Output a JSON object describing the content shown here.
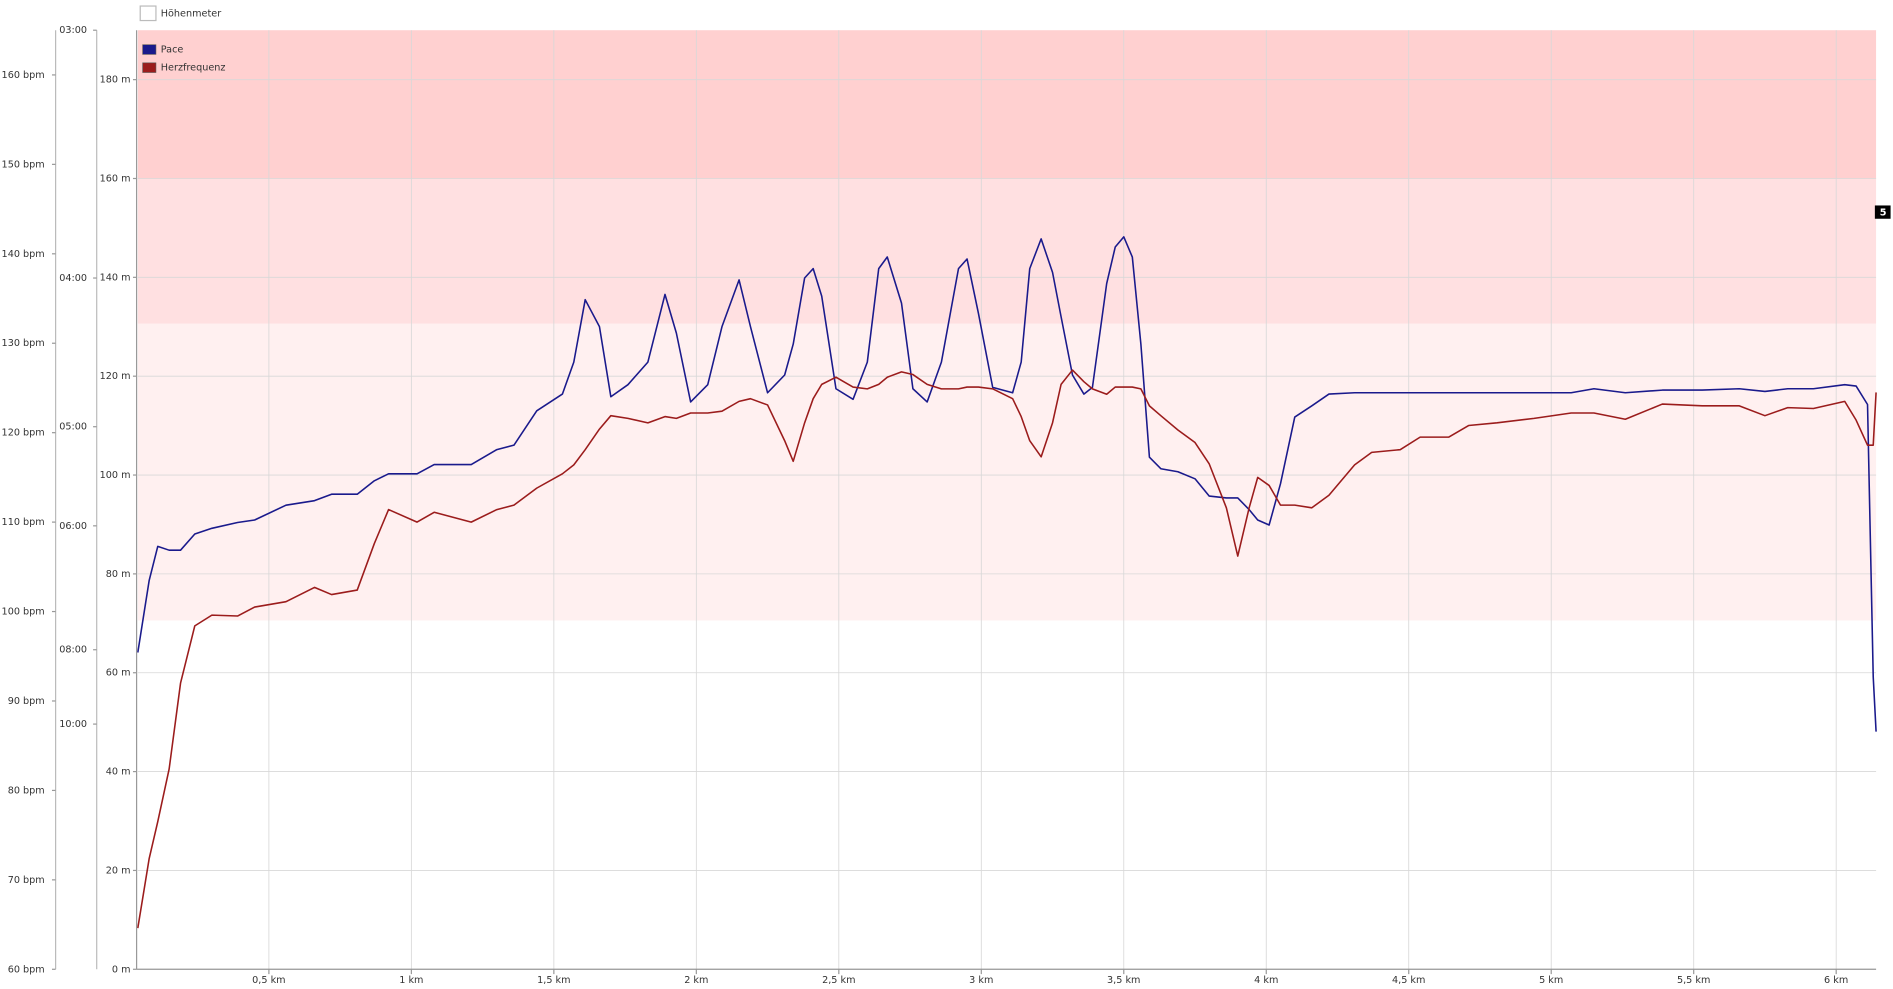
{
  "chart_data": {
    "type": "line",
    "top_legend": "Höhenmeter",
    "annotation": "5",
    "x": [
      0.04,
      0.08,
      0.11,
      0.15,
      0.19,
      0.24,
      0.3,
      0.39,
      0.45,
      0.56,
      0.66,
      0.72,
      0.81,
      0.87,
      0.92,
      1.02,
      1.08,
      1.21,
      1.3,
      1.36,
      1.44,
      1.53,
      1.57,
      1.61,
      1.66,
      1.7,
      1.76,
      1.83,
      1.89,
      1.93,
      1.98,
      2.04,
      2.09,
      2.15,
      2.19,
      2.25,
      2.31,
      2.34,
      2.38,
      2.41,
      2.44,
      2.49,
      2.55,
      2.6,
      2.64,
      2.67,
      2.72,
      2.76,
      2.81,
      2.86,
      2.92,
      2.95,
      2.99,
      3.04,
      3.11,
      3.14,
      3.17,
      3.21,
      3.25,
      3.28,
      3.32,
      3.36,
      3.39,
      3.44,
      3.47,
      3.5,
      3.53,
      3.56,
      3.59,
      3.63,
      3.69,
      3.75,
      3.8,
      3.86,
      3.9,
      3.94,
      3.97,
      4.01,
      4.05,
      4.1,
      4.16,
      4.22,
      4.31,
      4.37,
      4.47,
      4.54,
      4.64,
      4.71,
      4.81,
      4.94,
      5.07,
      5.15,
      5.26,
      5.39,
      5.53,
      5.66,
      5.75,
      5.83,
      5.92,
      6.03,
      6.07,
      6.11,
      6.13,
      6.14
    ],
    "series": [
      {
        "name": "Pace",
        "color": "#1a1a8c",
        "axis": "y2",
        "values": [
          8.06,
          6.74,
          6.26,
          6.31,
          6.31,
          6.1,
          6.03,
          5.96,
          5.93,
          5.76,
          5.71,
          5.64,
          5.64,
          5.5,
          5.43,
          5.43,
          5.34,
          5.34,
          5.2,
          5.16,
          4.87,
          4.74,
          4.51,
          4.12,
          4.28,
          4.76,
          4.67,
          4.51,
          4.09,
          4.32,
          4.8,
          4.67,
          4.28,
          4.01,
          4.28,
          4.73,
          4.6,
          4.39,
          4.0,
          3.95,
          4.1,
          4.7,
          4.78,
          4.51,
          3.95,
          3.89,
          4.14,
          4.7,
          4.8,
          4.51,
          3.95,
          3.9,
          4.2,
          4.69,
          4.73,
          4.51,
          3.95,
          3.8,
          3.97,
          4.22,
          4.6,
          4.74,
          4.69,
          4.03,
          3.84,
          3.79,
          3.89,
          4.39,
          5.27,
          5.38,
          5.41,
          5.48,
          5.66,
          5.68,
          5.68,
          5.81,
          5.93,
          5.99,
          5.53,
          4.92,
          4.83,
          4.74,
          4.73,
          4.73,
          4.73,
          4.73,
          4.73,
          4.73,
          4.73,
          4.73,
          4.73,
          4.7,
          4.73,
          4.71,
          4.71,
          4.7,
          4.72,
          4.7,
          4.7,
          4.67,
          4.68,
          4.82,
          8.63,
          10.26
        ]
      },
      {
        "name": "Herzfrequenz",
        "color": "#9b1c1c",
        "axis": "y",
        "values": [
          64.6,
          72.4,
          76.5,
          82.4,
          92.0,
          98.4,
          99.6,
          99.5,
          100.5,
          101.1,
          102.7,
          101.9,
          102.4,
          107.6,
          111.4,
          110.0,
          111.1,
          110.0,
          111.4,
          111.9,
          113.8,
          115.4,
          116.4,
          118.1,
          120.4,
          121.9,
          121.6,
          121.1,
          121.8,
          121.6,
          122.2,
          122.2,
          122.4,
          123.5,
          123.8,
          123.1,
          119.1,
          116.8,
          121.1,
          123.8,
          125.4,
          126.2,
          125.1,
          124.9,
          125.4,
          126.2,
          126.8,
          126.5,
          125.4,
          124.9,
          124.9,
          125.1,
          125.1,
          124.9,
          123.8,
          121.8,
          119.1,
          117.3,
          121.1,
          125.4,
          127.0,
          125.7,
          124.9,
          124.3,
          125.1,
          125.1,
          125.1,
          124.9,
          123.0,
          121.9,
          120.3,
          118.9,
          116.5,
          111.6,
          106.2,
          111.6,
          115.0,
          114.1,
          111.9,
          111.9,
          111.6,
          113.0,
          116.4,
          117.8,
          118.1,
          119.5,
          119.5,
          120.8,
          121.1,
          121.6,
          122.2,
          122.2,
          121.5,
          123.2,
          123.0,
          123.0,
          121.9,
          122.8,
          122.7,
          123.5,
          121.4,
          118.6,
          118.6,
          124.5
        ]
      }
    ],
    "xlim": [
      0.04,
      6.14
    ],
    "xticks": [
      {
        "value": 0.5,
        "label": "0,5 km"
      },
      {
        "value": 1,
        "label": "1 km"
      },
      {
        "value": 1.5,
        "label": "1,5 km"
      },
      {
        "value": 2,
        "label": "2 km"
      },
      {
        "value": 2.5,
        "label": "2,5 km"
      },
      {
        "value": 3,
        "label": "3 km"
      },
      {
        "value": 3.5,
        "label": "3,5 km"
      },
      {
        "value": 4,
        "label": "4 km"
      },
      {
        "value": 4.5,
        "label": "4,5 km"
      },
      {
        "value": 5,
        "label": "5 km"
      },
      {
        "value": 5.5,
        "label": "5,5 km"
      },
      {
        "value": 6,
        "label": "6 km"
      }
    ],
    "ylim": [
      60,
      165
    ],
    "yticks": [
      {
        "value": 60,
        "label": "60 bpm"
      },
      {
        "value": 70,
        "label": "70 bpm"
      },
      {
        "value": 80,
        "label": "80 bpm"
      },
      {
        "value": 90,
        "label": "90 bpm"
      },
      {
        "value": 100,
        "label": "100 bpm"
      },
      {
        "value": 110,
        "label": "110 bpm"
      },
      {
        "value": 120,
        "label": "120 bpm"
      },
      {
        "value": 130,
        "label": "130 bpm"
      },
      {
        "value": 140,
        "label": "140 bpm"
      },
      {
        "value": 150,
        "label": "150 bpm"
      },
      {
        "value": 160,
        "label": "160 bpm"
      }
    ],
    "y2lim": [
      57,
      3
    ],
    "y2scale": "reciprocal",
    "y2ticks": [
      {
        "value": 3,
        "label": "03:00"
      },
      {
        "value": 4,
        "label": "04:00"
      },
      {
        "value": 5,
        "label": "05:00"
      },
      {
        "value": 6,
        "label": "06:00"
      },
      {
        "value": 8,
        "label": "08:00"
      },
      {
        "value": 10,
        "label": "10:00"
      }
    ],
    "y3lim": [
      0,
      190
    ],
    "y3ticks": [
      {
        "value": 0,
        "label": "0 m"
      },
      {
        "value": 20,
        "label": "20 m"
      },
      {
        "value": 40,
        "label": "40 m"
      },
      {
        "value": 60,
        "label": "60 m"
      },
      {
        "value": 80,
        "label": "80 m"
      },
      {
        "value": 100,
        "label": "100 m"
      },
      {
        "value": 120,
        "label": "120 m"
      },
      {
        "value": 140,
        "label": "140 m"
      },
      {
        "value": 160,
        "label": "160 m"
      },
      {
        "value": 180,
        "label": "180 m"
      }
    ],
    "grid": true,
    "bands": [
      {
        "from": 99,
        "to": 132.2,
        "color": "#fff0f0"
      },
      {
        "from": 132.2,
        "to": 148.4,
        "color": "#ffe0e1"
      },
      {
        "from": 148.4,
        "to": 165,
        "color": "#ffd0d0"
      }
    ]
  }
}
